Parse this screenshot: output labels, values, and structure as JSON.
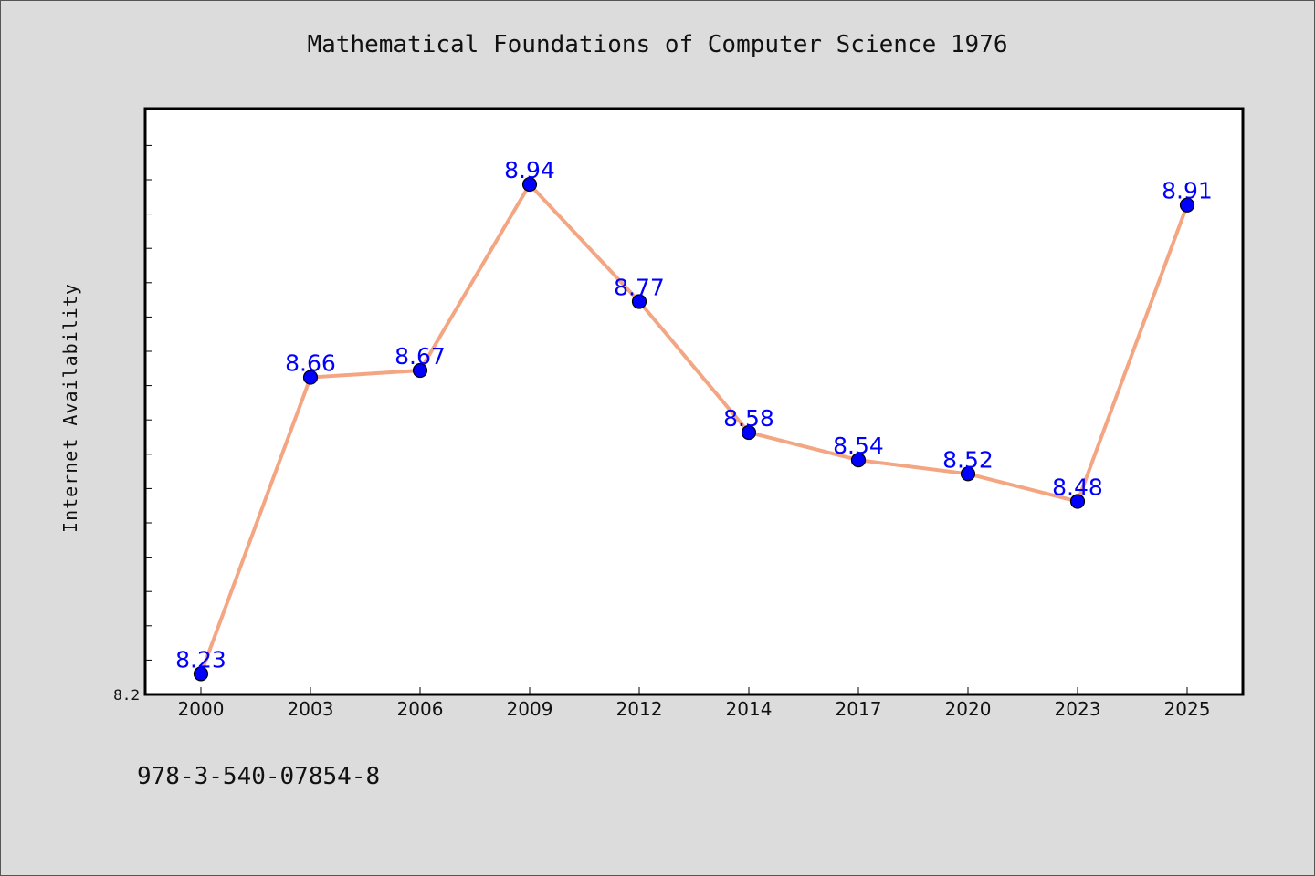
{
  "chart_data": {
    "type": "line",
    "title": "Mathematical Foundations of Computer Science 1976",
    "xlabel": "",
    "ylabel": "Internet Availability",
    "categories": [
      "2000",
      "2003",
      "2006",
      "2009",
      "2012",
      "2014",
      "2017",
      "2020",
      "2023",
      "2025"
    ],
    "series": [
      {
        "values": [
          8.23,
          8.66,
          8.67,
          8.94,
          8.77,
          8.58,
          8.54,
          8.52,
          8.48,
          8.91
        ],
        "labels": [
          "8.23",
          "8.66",
          "8.67",
          "8.94",
          "8.77",
          "8.58",
          "8.54",
          "8.52",
          "8.48",
          "8.91"
        ],
        "line_color": "#f4a582",
        "marker_color": "#0000ff",
        "label_color": "#0000ff"
      }
    ],
    "ylim": [
      8.2,
      9.05
    ],
    "y_tick_labels": [
      "8.2"
    ],
    "grid": false,
    "legend": "none"
  },
  "footer": {
    "isbn": "978-3-540-07854-8"
  }
}
